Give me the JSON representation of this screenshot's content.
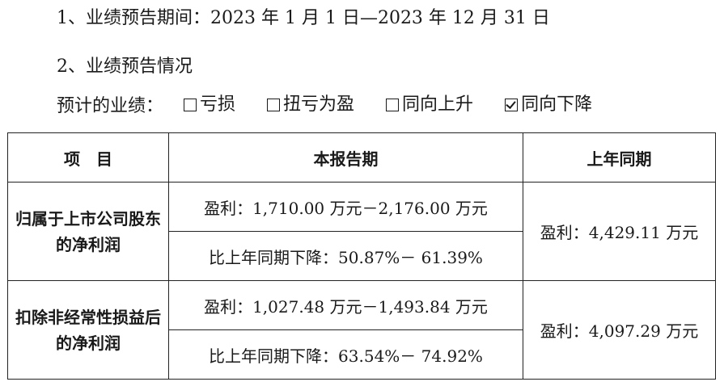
{
  "section1": {
    "text": "1、业绩预告期间：2023 年 1 月 1 日—2023 年 12 月 31 日"
  },
  "section2": {
    "title": "2、业绩预告情况",
    "prefix": "预计的业绩：",
    "options": [
      {
        "label": "亏损",
        "checked": false
      },
      {
        "label": "扭亏为盈",
        "checked": false
      },
      {
        "label": "同向上升",
        "checked": false
      },
      {
        "label": "同向下降",
        "checked": true
      }
    ]
  },
  "table": {
    "headers": {
      "item": "项　目",
      "current": "本报告期",
      "previous": "上年同期"
    },
    "rows": [
      {
        "item": "归属于上市公司股东的净利润",
        "current_profit": "盈利：1,710.00 万元－2,176.00 万元",
        "current_change": "比上年同期下降：50.87%－ 61.39%",
        "previous": "盈利：4,429.11 万元"
      },
      {
        "item": "扣除非经常性损益后的净利润",
        "current_profit": "盈利：1,027.48 万元－1,493.84 万元",
        "current_change": "比上年同期下降：63.54%－ 74.92%",
        "previous": "盈利：4,097.29 万元"
      }
    ]
  }
}
